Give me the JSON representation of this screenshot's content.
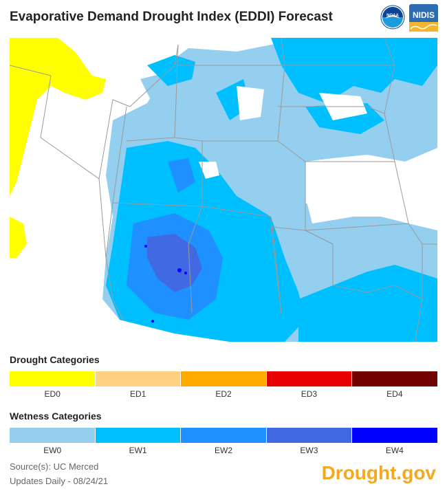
{
  "header": {
    "title": "Evaporative Demand Drought Index (EDDI) Forecast",
    "logos": [
      "noaa-logo",
      "nidis-logo"
    ],
    "noaa_text": "NOAA",
    "nidis_text": "NIDIS"
  },
  "legend": {
    "drought_title": "Drought Categories",
    "drought": [
      {
        "label": "ED0",
        "color": "#ffff00"
      },
      {
        "label": "ED1",
        "color": "#fdd17f"
      },
      {
        "label": "ED2",
        "color": "#ffaa00"
      },
      {
        "label": "ED3",
        "color": "#e60000"
      },
      {
        "label": "ED4",
        "color": "#730000"
      }
    ],
    "wetness_title": "Wetness Categories",
    "wetness": [
      {
        "label": "EW0",
        "color": "#94cff0"
      },
      {
        "label": "EW1",
        "color": "#00bfff"
      },
      {
        "label": "EW2",
        "color": "#1e90ff"
      },
      {
        "label": "EW3",
        "color": "#4169e1"
      },
      {
        "label": "EW4",
        "color": "#0000ff"
      }
    ]
  },
  "footer": {
    "source": "Source(s): UC Merced",
    "updates": "Updates Daily - 08/24/21",
    "brand": "Drought.gov"
  }
}
